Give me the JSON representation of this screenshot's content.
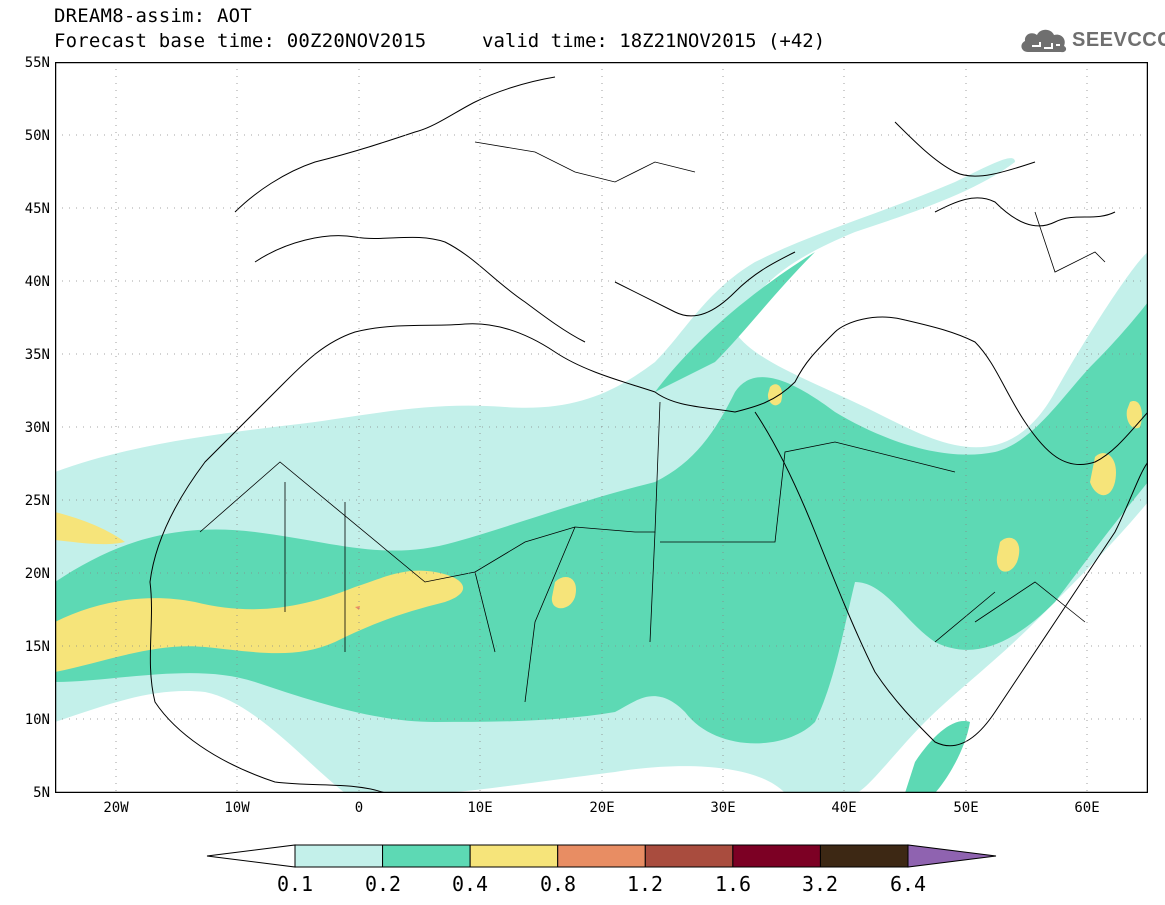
{
  "header": {
    "title_line1": "DREAM8-assim: AOT",
    "title_line2": "Forecast base time: 00Z20NOV2015",
    "valid_time": "valid time: 18Z21NOV2015 (+42)"
  },
  "logo": {
    "text": "SEEVCCC",
    "icon": "cloud-icon"
  },
  "map": {
    "lat_labels": [
      "55N",
      "50N",
      "45N",
      "40N",
      "35N",
      "30N",
      "25N",
      "20N",
      "15N",
      "10N",
      "5N"
    ],
    "lon_labels": [
      "20W",
      "10W",
      "0",
      "10E",
      "20E",
      "30E",
      "40E",
      "50E",
      "60E"
    ],
    "lat_range": [
      5,
      55
    ],
    "lon_range": [
      -25,
      65
    ],
    "grid": "dotted"
  },
  "colorbar": {
    "labels": [
      "0.1",
      "0.2",
      "0.4",
      "0.8",
      "1.2",
      "1.6",
      "3.2",
      "6.4"
    ],
    "colors": [
      "#ffffff",
      "#c3f0ea",
      "#5dd9b4",
      "#f6e47a",
      "#e88d63",
      "#a94c3e",
      "#7c0024",
      "#3d2814",
      "#8f63b0"
    ]
  }
}
